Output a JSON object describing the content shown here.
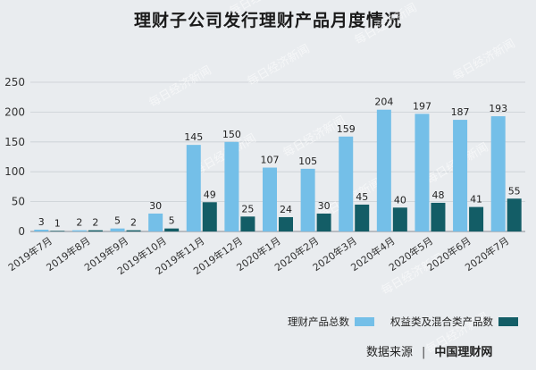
{
  "header": {
    "title": "理财子公司发行理财产品月度情况"
  },
  "chart_data": {
    "type": "bar",
    "title": "理财子公司发行理财产品月度情况",
    "categories": [
      "2019年7月",
      "2019年8月",
      "2019年9月",
      "2019年10月",
      "2019年11月",
      "2019年12月",
      "2020年1月",
      "2020年2月",
      "2020年3月",
      "2020年4月",
      "2020年5月",
      "2020年6月",
      "2020年7月"
    ],
    "series": [
      {
        "name": "理财产品总数",
        "color": "#74bfe8",
        "values": [
          3,
          2,
          5,
          30,
          145,
          150,
          107,
          105,
          159,
          204,
          197,
          187,
          193
        ]
      },
      {
        "name": "权益类及混合类产品数",
        "color": "#135d66",
        "values": [
          1,
          2,
          2,
          5,
          49,
          25,
          24,
          30,
          45,
          40,
          48,
          41,
          55
        ]
      }
    ],
    "ylim": [
      0,
      250
    ],
    "yticks": [
      0,
      50,
      100,
      150,
      200,
      250
    ],
    "grid": true,
    "legend_position": "bottom-right"
  },
  "watermark": "每日经济新闻",
  "footer": {
    "source_label": "数据来源",
    "source_name": "中国理财网"
  }
}
